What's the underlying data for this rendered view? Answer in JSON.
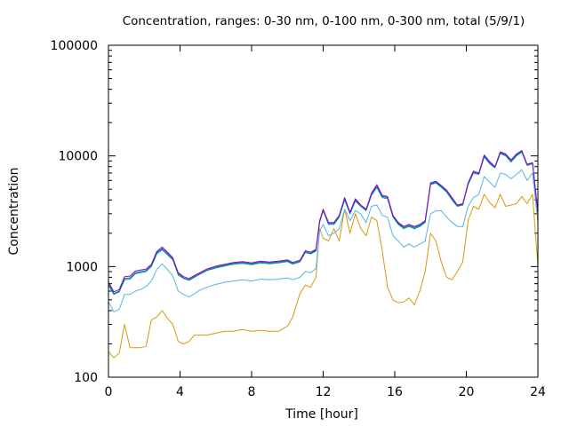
{
  "chart_data": {
    "type": "line",
    "title": "Concentration, ranges: 0-30 nm, 0-100 nm, 0-300 nm, total (5/9/1)",
    "xlabel": "Time [hour]",
    "ylabel": "Concentration",
    "xlim": [
      0,
      24
    ],
    "ylim": [
      100,
      100000
    ],
    "yscale": "log",
    "grid": false,
    "legend": "none",
    "x_ticks": [
      "0",
      "4",
      "8",
      "12",
      "16",
      "20",
      "24"
    ],
    "y_ticks": [
      "100",
      "1000",
      "10000",
      "100000"
    ],
    "x": [
      0,
      0.3,
      0.6,
      0.9,
      1.2,
      1.5,
      1.8,
      2.1,
      2.4,
      2.7,
      3.0,
      3.3,
      3.6,
      3.9,
      4.2,
      4.5,
      4.8,
      5.1,
      5.5,
      6.0,
      6.5,
      7.0,
      7.5,
      8.0,
      8.5,
      9.0,
      9.5,
      10.0,
      10.3,
      10.7,
      11.0,
      11.3,
      11.6,
      11.8,
      12.0,
      12.3,
      12.6,
      12.9,
      13.2,
      13.5,
      13.8,
      14.1,
      14.4,
      14.7,
      15.0,
      15.3,
      15.6,
      15.9,
      16.2,
      16.5,
      16.8,
      17.1,
      17.4,
      17.7,
      18.0,
      18.3,
      18.6,
      18.9,
      19.2,
      19.5,
      19.8,
      20.1,
      20.4,
      20.7,
      21.0,
      21.3,
      21.6,
      21.9,
      22.2,
      22.5,
      22.8,
      23.1,
      23.4,
      23.7,
      24.0
    ],
    "series": [
      {
        "color": "#d99a0b",
        "values": [
          170,
          150,
          165,
          300,
          185,
          185,
          185,
          190,
          330,
          350,
          400,
          340,
          300,
          210,
          200,
          210,
          240,
          240,
          240,
          250,
          260,
          260,
          270,
          260,
          265,
          260,
          260,
          290,
          350,
          570,
          680,
          650,
          800,
          2200,
          1800,
          1700,
          2200,
          1700,
          3300,
          2000,
          3000,
          2200,
          1900,
          2800,
          2600,
          1400,
          650,
          500,
          470,
          480,
          520,
          450,
          600,
          900,
          2000,
          1700,
          1100,
          800,
          760,
          900,
          1100,
          2600,
          3500,
          3300,
          4500,
          3800,
          3400,
          4500,
          3500,
          3600,
          3700,
          4300,
          3700,
          4500,
          1000
        ]
      },
      {
        "color": "#56b4e9",
        "values": [
          480,
          390,
          410,
          560,
          560,
          600,
          620,
          660,
          740,
          940,
          1060,
          940,
          820,
          600,
          560,
          530,
          570,
          610,
          650,
          690,
          720,
          740,
          760,
          740,
          770,
          760,
          770,
          790,
          760,
          800,
          900,
          880,
          960,
          2100,
          2400,
          1900,
          2000,
          2200,
          3300,
          2600,
          3200,
          3000,
          2500,
          3500,
          3600,
          2900,
          2800,
          1900,
          1700,
          1500,
          1600,
          1500,
          1600,
          1700,
          3000,
          3200,
          3200,
          2800,
          2500,
          2300,
          2300,
          3500,
          4200,
          4500,
          6500,
          5800,
          5200,
          7000,
          6800,
          6200,
          6800,
          7500,
          6000,
          7000,
          2500
        ]
      },
      {
        "color": "#009e73",
        "values": [
          680,
          560,
          590,
          760,
          770,
          860,
          880,
          900,
          1000,
          1300,
          1420,
          1280,
          1150,
          840,
          780,
          750,
          800,
          850,
          920,
          970,
          1010,
          1050,
          1070,
          1040,
          1080,
          1060,
          1080,
          1110,
          1050,
          1100,
          1340,
          1300,
          1380,
          2500,
          3200,
          2400,
          2400,
          2800,
          4000,
          3000,
          3900,
          3500,
          3200,
          4400,
          5200,
          4200,
          4100,
          2800,
          2400,
          2200,
          2300,
          2200,
          2300,
          2500,
          5500,
          5700,
          5200,
          4700,
          4000,
          3500,
          3600,
          5500,
          7000,
          6800,
          9800,
          8500,
          7800,
          10500,
          10000,
          8800,
          10000,
          10800,
          8200,
          8500,
          3000
        ]
      },
      {
        "color": "#0072b2",
        "values": [
          700,
          570,
          600,
          780,
          790,
          880,
          900,
          920,
          1020,
          1330,
          1450,
          1310,
          1170,
          860,
          790,
          760,
          810,
          860,
          930,
          990,
          1030,
          1070,
          1090,
          1060,
          1100,
          1080,
          1100,
          1130,
          1070,
          1120,
          1360,
          1320,
          1400,
          2550,
          3250,
          2450,
          2450,
          2850,
          4100,
          3050,
          4000,
          3550,
          3250,
          4500,
          5300,
          4300,
          4200,
          2850,
          2450,
          2250,
          2350,
          2250,
          2350,
          2550,
          5600,
          5800,
          5300,
          4800,
          4100,
          3550,
          3650,
          5600,
          7100,
          6900,
          10000,
          8700,
          7900,
          10700,
          10200,
          9000,
          10200,
          11000,
          8300,
          8600,
          3050
        ]
      },
      {
        "color": "#9400d3",
        "values": [
          730,
          590,
          620,
          810,
          820,
          910,
          930,
          950,
          1050,
          1370,
          1500,
          1350,
          1200,
          880,
          810,
          780,
          830,
          880,
          950,
          1010,
          1050,
          1090,
          1110,
          1080,
          1120,
          1100,
          1120,
          1150,
          1090,
          1140,
          1390,
          1350,
          1430,
          2600,
          3300,
          2500,
          2500,
          2900,
          4200,
          3100,
          4100,
          3600,
          3300,
          4600,
          5500,
          4400,
          4300,
          2900,
          2500,
          2300,
          2400,
          2300,
          2400,
          2600,
          5700,
          5900,
          5400,
          4900,
          4200,
          3600,
          3700,
          5700,
          7300,
          7000,
          10200,
          8900,
          8000,
          10900,
          10400,
          9200,
          10400,
          11200,
          8400,
          8700,
          3100
        ]
      }
    ]
  }
}
